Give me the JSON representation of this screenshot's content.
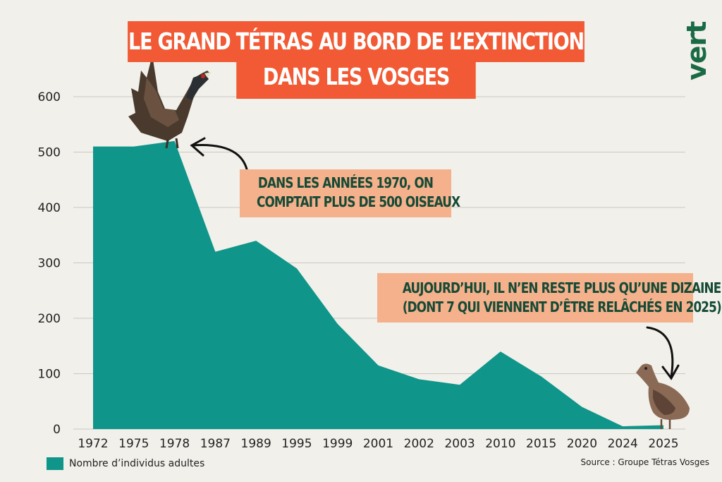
{
  "title": {
    "line1": "LE GRAND TÉTRAS AU BORD DE L’EXTINCTION",
    "line2": "DANS LES VOSGES"
  },
  "logo": {
    "text": "vert"
  },
  "callouts": {
    "first": {
      "line1": "DANS LES ANNÉES 1970, ON",
      "line2": "COMPTAIT PLUS DE 500 OISEAUX"
    },
    "second": {
      "line1": "AUJOURD’HUI, IL N’EN RESTE PLUS QU’UNE DIZAINE",
      "line2": "(DONT 7 QUI VIENNENT D’ÊTRE RELÂCHÉS EN 2025)"
    }
  },
  "legend": {
    "label": "Nombre d’individus adultes"
  },
  "source": "Source : Groupe Tétras Vosges",
  "colors": {
    "area": "#0f958a",
    "title_bg": "#f15a34",
    "callout_bg": "#f5b08c",
    "callout_text": "#154a35",
    "background": "#f1f0ea",
    "logo": "#1a6b45"
  },
  "icons": [
    "capercaillie-male-illustration",
    "capercaillie-hen-illustration",
    "curved-arrow-icon"
  ],
  "chart_data": {
    "type": "area",
    "categories": [
      "1972",
      "1975",
      "1978",
      "1987",
      "1989",
      "1995",
      "1999",
      "2001",
      "2002",
      "2003",
      "2010",
      "2015",
      "2020",
      "2024",
      "2025"
    ],
    "series": [
      {
        "name": "Nombre d’individus adultes",
        "values": [
          510,
          510,
          520,
          320,
          340,
          290,
          190,
          115,
          90,
          80,
          140,
          95,
          40,
          5,
          7
        ]
      }
    ],
    "ylim": [
      0,
      600
    ],
    "yticks": [
      "0",
      "100",
      "200",
      "300",
      "400",
      "500",
      "600"
    ],
    "grid": true,
    "legend_position": "bottom-left"
  }
}
